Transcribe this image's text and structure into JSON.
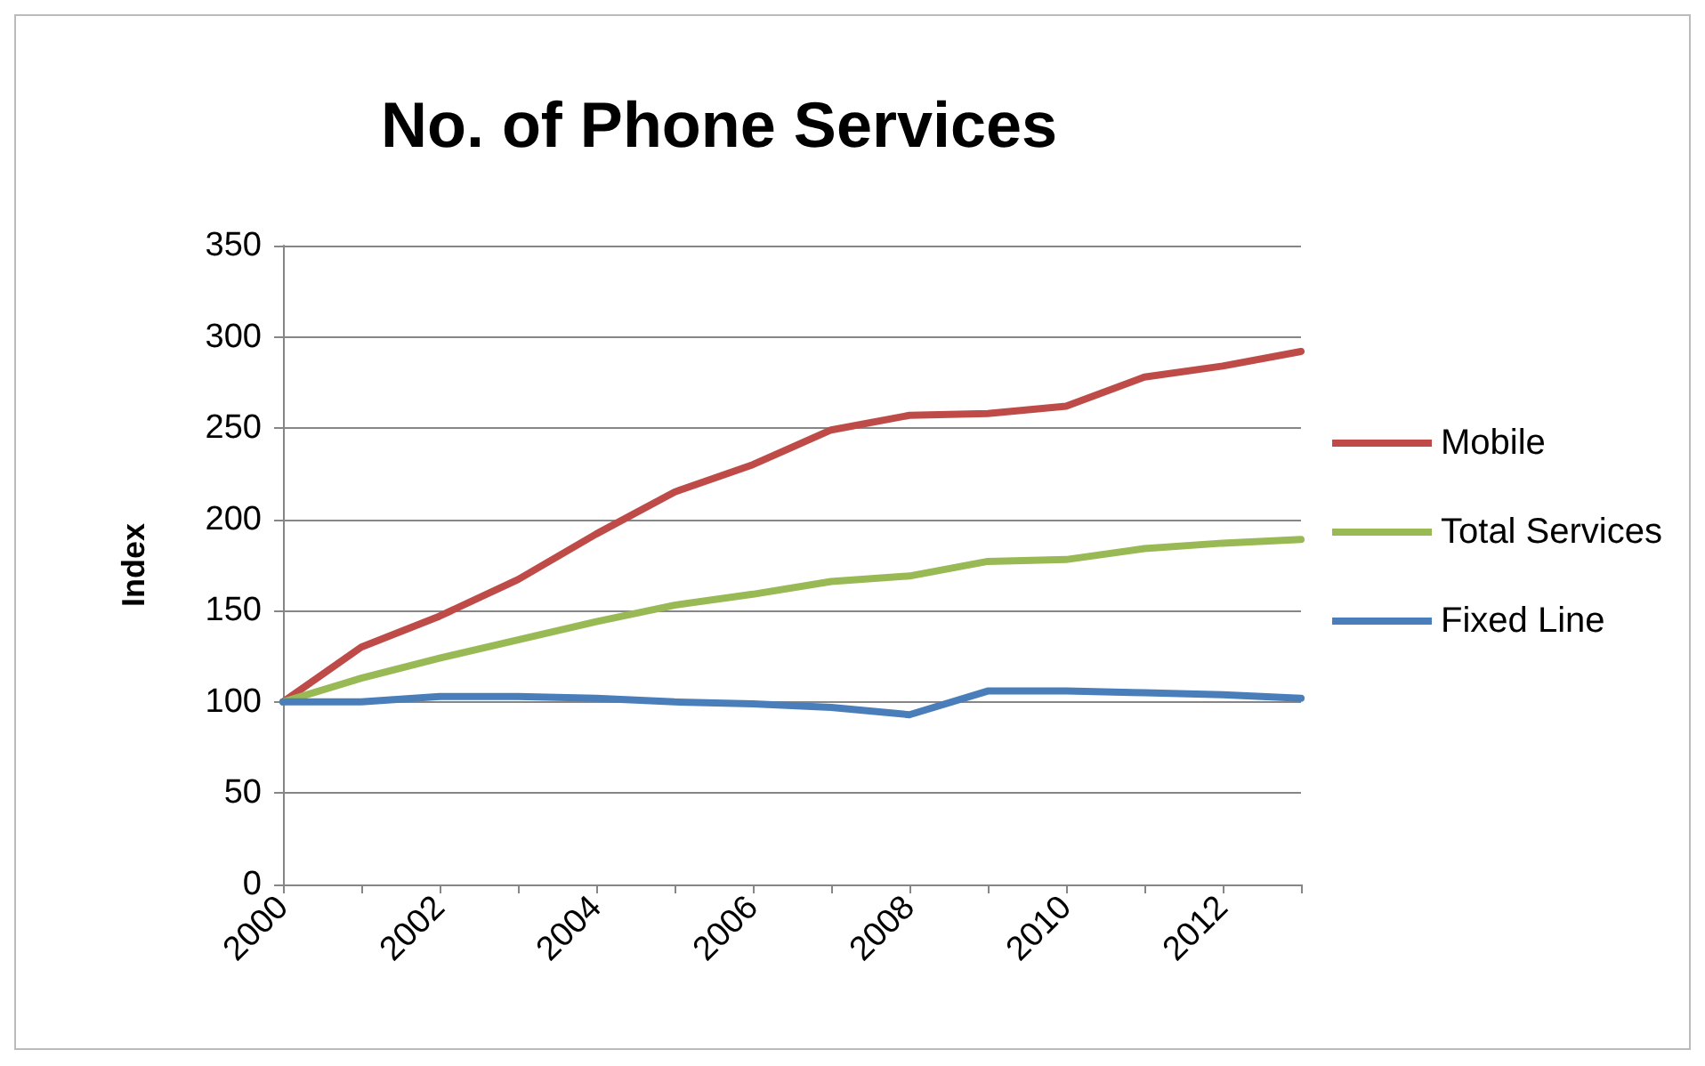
{
  "chart_data": {
    "type": "line",
    "title": "No. of Phone Services",
    "ylabel": "Index",
    "categories": [
      "2000",
      null,
      "2002",
      null,
      "2004",
      null,
      "2006",
      null,
      "2008",
      null,
      "2010",
      null,
      "2012",
      null
    ],
    "series": [
      {
        "name": "Mobile",
        "color": "#be4b48",
        "values": [
          100,
          130,
          147,
          167,
          192,
          215,
          230,
          249,
          257,
          258,
          262,
          278,
          284,
          292
        ]
      },
      {
        "name": "Total Services",
        "color": "#98b954",
        "values": [
          100,
          113,
          124,
          134,
          144,
          153,
          159,
          166,
          169,
          177,
          178,
          184,
          187,
          189
        ]
      },
      {
        "name": "Fixed Line",
        "color": "#4a7ebb",
        "values": [
          100,
          100,
          103,
          103,
          102,
          100,
          99,
          97,
          93,
          106,
          106,
          105,
          104,
          102
        ]
      }
    ],
    "ylim": [
      0,
      350
    ],
    "yticks": [
      0,
      50,
      100,
      150,
      200,
      250,
      300,
      350
    ],
    "grid": "y",
    "legend": "right",
    "marker": "none",
    "line_style": "solid"
  }
}
